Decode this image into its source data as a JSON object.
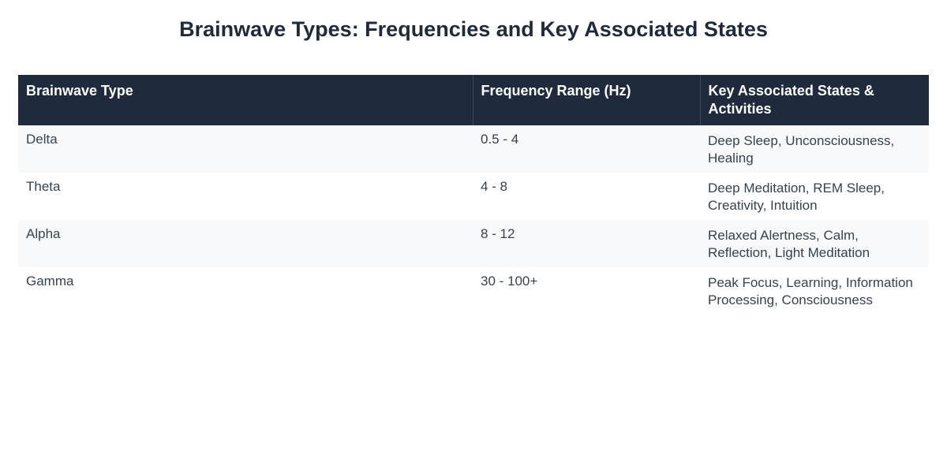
{
  "title": "Brainwave Types: Frequencies and Key Associated States",
  "chart_data": {
    "type": "table",
    "title": "Brainwave Types: Frequencies and Key Associated States",
    "columns": [
      "Brainwave Type",
      "Frequency Range (Hz)",
      "Key Associated States & Activities"
    ],
    "rows": [
      {
        "type": "Delta",
        "frequency": "0.5 - 4",
        "states": "Deep Sleep, Unconsciousness, Healing"
      },
      {
        "type": "Theta",
        "frequency": "4 - 8",
        "states": "Deep Meditation, REM Sleep, Creativity, Intuition"
      },
      {
        "type": "Alpha",
        "frequency": "8 - 12",
        "states": "Relaxed Alertness, Calm, Reflection, Light Meditation"
      },
      {
        "type": "Gamma",
        "frequency": "30 - 100+",
        "states": "Peak Focus, Learning, Information Processing, Consciousness"
      }
    ]
  },
  "colors": {
    "header_background": "#1f2a3c",
    "header_text": "#ffffff",
    "row_alt_background": "#f8f9fb",
    "body_text": "#374151"
  }
}
